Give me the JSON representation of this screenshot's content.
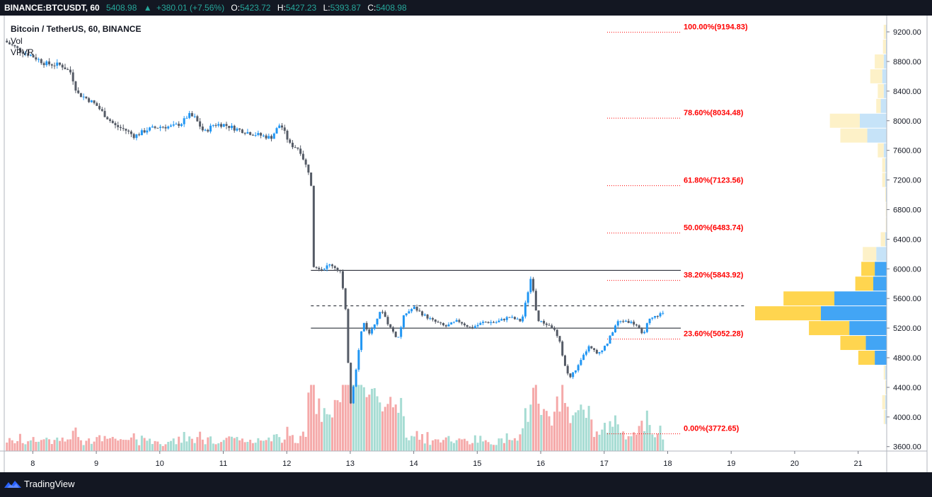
{
  "header": {
    "symbol": "BINANCE:BTCUSDT, 60",
    "last": "5408.98",
    "change_arrow": "▲",
    "change": "+380.01 (+7.56%)",
    "o_label": "O:",
    "o": "5423.72",
    "h_label": "H:",
    "h": "5427.23",
    "l_label": "L:",
    "l": "5393.87",
    "c_label": "C:",
    "c": "5408.98"
  },
  "legend": {
    "title": "Bitcoin / TetherUS, 60, BINANCE",
    "vol": "Vol",
    "vpvr": "VPVR"
  },
  "footer": {
    "brand": "TradingView",
    "brand_icon": "tradingview-logo-icon"
  },
  "colors": {
    "up": "#2196f3",
    "down": "#555b66",
    "vol_up": "#a6dcd3",
    "vol_down": "#f5a9a9",
    "fib": "#ff0000",
    "vp_up": "#42a5f5",
    "vp_down": "#ffd54f",
    "vp_up_far": "#c6e3f8",
    "vp_down_far": "#fdf1c8"
  },
  "chart_data": {
    "type": "candlestick",
    "x_ticks": [
      "8",
      "9",
      "10",
      "11",
      "12",
      "13",
      "14",
      "15",
      "16",
      "17",
      "18",
      "19",
      "20",
      "21"
    ],
    "x_range": [
      7.55,
      21.45
    ],
    "y_ticks": [
      "9200.00",
      "8800.00",
      "8400.00",
      "8000.00",
      "7600.00",
      "7200.00",
      "6800.00",
      "6400.00",
      "6000.00",
      "5600.00",
      "5200.00",
      "4800.00",
      "4400.00",
      "4000.00",
      "3600.00"
    ],
    "y_range": [
      3540,
      9420
    ],
    "price_path": [
      [
        7.55,
        9080
      ],
      [
        7.8,
        8950
      ],
      [
        8.0,
        8870
      ],
      [
        8.2,
        8770
      ],
      [
        8.45,
        8750
      ],
      [
        8.6,
        8650
      ],
      [
        8.7,
        8370
      ],
      [
        8.85,
        8300
      ],
      [
        9.0,
        8210
      ],
      [
        9.15,
        8060
      ],
      [
        9.3,
        7930
      ],
      [
        9.45,
        7880
      ],
      [
        9.6,
        7790
      ],
      [
        9.8,
        7880
      ],
      [
        10.0,
        7920
      ],
      [
        10.2,
        7920
      ],
      [
        10.35,
        7970
      ],
      [
        10.45,
        8080
      ],
      [
        10.55,
        8040
      ],
      [
        10.7,
        7840
      ],
      [
        10.85,
        7950
      ],
      [
        11.0,
        7950
      ],
      [
        11.2,
        7890
      ],
      [
        11.4,
        7840
      ],
      [
        11.6,
        7800
      ],
      [
        11.75,
        7770
      ],
      [
        11.9,
        7960
      ],
      [
        12.05,
        7680
      ],
      [
        12.2,
        7620
      ],
      [
        12.3,
        7400
      ],
      [
        12.38,
        7250
      ],
      [
        12.42,
        6050
      ],
      [
        12.55,
        6000
      ],
      [
        12.7,
        6060
      ],
      [
        12.85,
        5960
      ],
      [
        12.93,
        5400
      ],
      [
        13.0,
        4150
      ],
      [
        13.1,
        4700
      ],
      [
        13.2,
        5300
      ],
      [
        13.3,
        5120
      ],
      [
        13.4,
        5300
      ],
      [
        13.5,
        5450
      ],
      [
        13.6,
        5250
      ],
      [
        13.75,
        5050
      ],
      [
        13.85,
        5380
      ],
      [
        14.0,
        5480
      ],
      [
        14.15,
        5380
      ],
      [
        14.3,
        5300
      ],
      [
        14.5,
        5220
      ],
      [
        14.7,
        5300
      ],
      [
        14.9,
        5200
      ],
      [
        15.1,
        5280
      ],
      [
        15.3,
        5280
      ],
      [
        15.5,
        5350
      ],
      [
        15.7,
        5290
      ],
      [
        15.85,
        5900
      ],
      [
        15.95,
        5300
      ],
      [
        16.1,
        5250
      ],
      [
        16.2,
        5200
      ],
      [
        16.3,
        5000
      ],
      [
        16.38,
        4700
      ],
      [
        16.45,
        4520
      ],
      [
        16.6,
        4700
      ],
      [
        16.75,
        4950
      ],
      [
        16.9,
        4850
      ],
      [
        17.05,
        5000
      ],
      [
        17.2,
        5280
      ],
      [
        17.35,
        5300
      ],
      [
        17.5,
        5250
      ],
      [
        17.6,
        5100
      ],
      [
        17.7,
        5300
      ],
      [
        17.85,
        5380
      ],
      [
        17.95,
        5409
      ]
    ],
    "volume_series": "Vol",
    "horizontal_levels": [
      5980,
      5500,
      5200
    ],
    "fib_levels": [
      {
        "label": "100.00%(9194.83)",
        "price": 9194.83
      },
      {
        "label": "78.60%(8034.48)",
        "price": 8034.48
      },
      {
        "label": "61.80%(7123.56)",
        "price": 7123.56
      },
      {
        "label": "50.00%(6483.74)",
        "price": 6483.74
      },
      {
        "label": "38.20%(5843.92)",
        "price": 5843.92
      },
      {
        "label": "23.60%(5052.28)",
        "price": 5052.28
      },
      {
        "label": "0.00%(3772.65)",
        "price": 3772.65
      }
    ],
    "volume_profile": [
      {
        "price": 9200,
        "up": 0.5,
        "down": 1.5
      },
      {
        "price": 9000,
        "up": 0.5,
        "down": 2
      },
      {
        "price": 8800,
        "up": 2,
        "down": 6
      },
      {
        "price": 8600,
        "up": 3,
        "down": 8
      },
      {
        "price": 8400,
        "up": 2,
        "down": 4
      },
      {
        "price": 8200,
        "up": 4,
        "down": 3
      },
      {
        "price": 8000,
        "up": 18,
        "down": 20
      },
      {
        "price": 7800,
        "up": 13,
        "down": 18
      },
      {
        "price": 7600,
        "up": 2,
        "down": 4
      },
      {
        "price": 7400,
        "up": 1,
        "down": 2
      },
      {
        "price": 7200,
        "up": 1,
        "down": 2
      },
      {
        "price": 7000,
        "up": 0.5,
        "down": 0.5
      },
      {
        "price": 6800,
        "up": 0.3,
        "down": 0.3
      },
      {
        "price": 6600,
        "up": 0.3,
        "down": 0.3
      },
      {
        "price": 6400,
        "up": 1,
        "down": 3
      },
      {
        "price": 6200,
        "up": 7,
        "down": 9
      },
      {
        "price": 6000,
        "up": 8,
        "down": 9
      },
      {
        "price": 5800,
        "up": 9,
        "down": 12
      },
      {
        "price": 5600,
        "up": 35,
        "down": 34
      },
      {
        "price": 5400,
        "up": 44,
        "down": 44
      },
      {
        "price": 5200,
        "up": 25,
        "down": 27
      },
      {
        "price": 5000,
        "up": 14,
        "down": 17
      },
      {
        "price": 4800,
        "up": 8,
        "down": 11
      },
      {
        "price": 4600,
        "up": 1,
        "down": 1
      },
      {
        "price": 4400,
        "up": 0.5,
        "down": 0.5
      },
      {
        "price": 4200,
        "up": 1,
        "down": 2
      },
      {
        "price": 4000,
        "up": 1,
        "down": 1
      }
    ]
  }
}
